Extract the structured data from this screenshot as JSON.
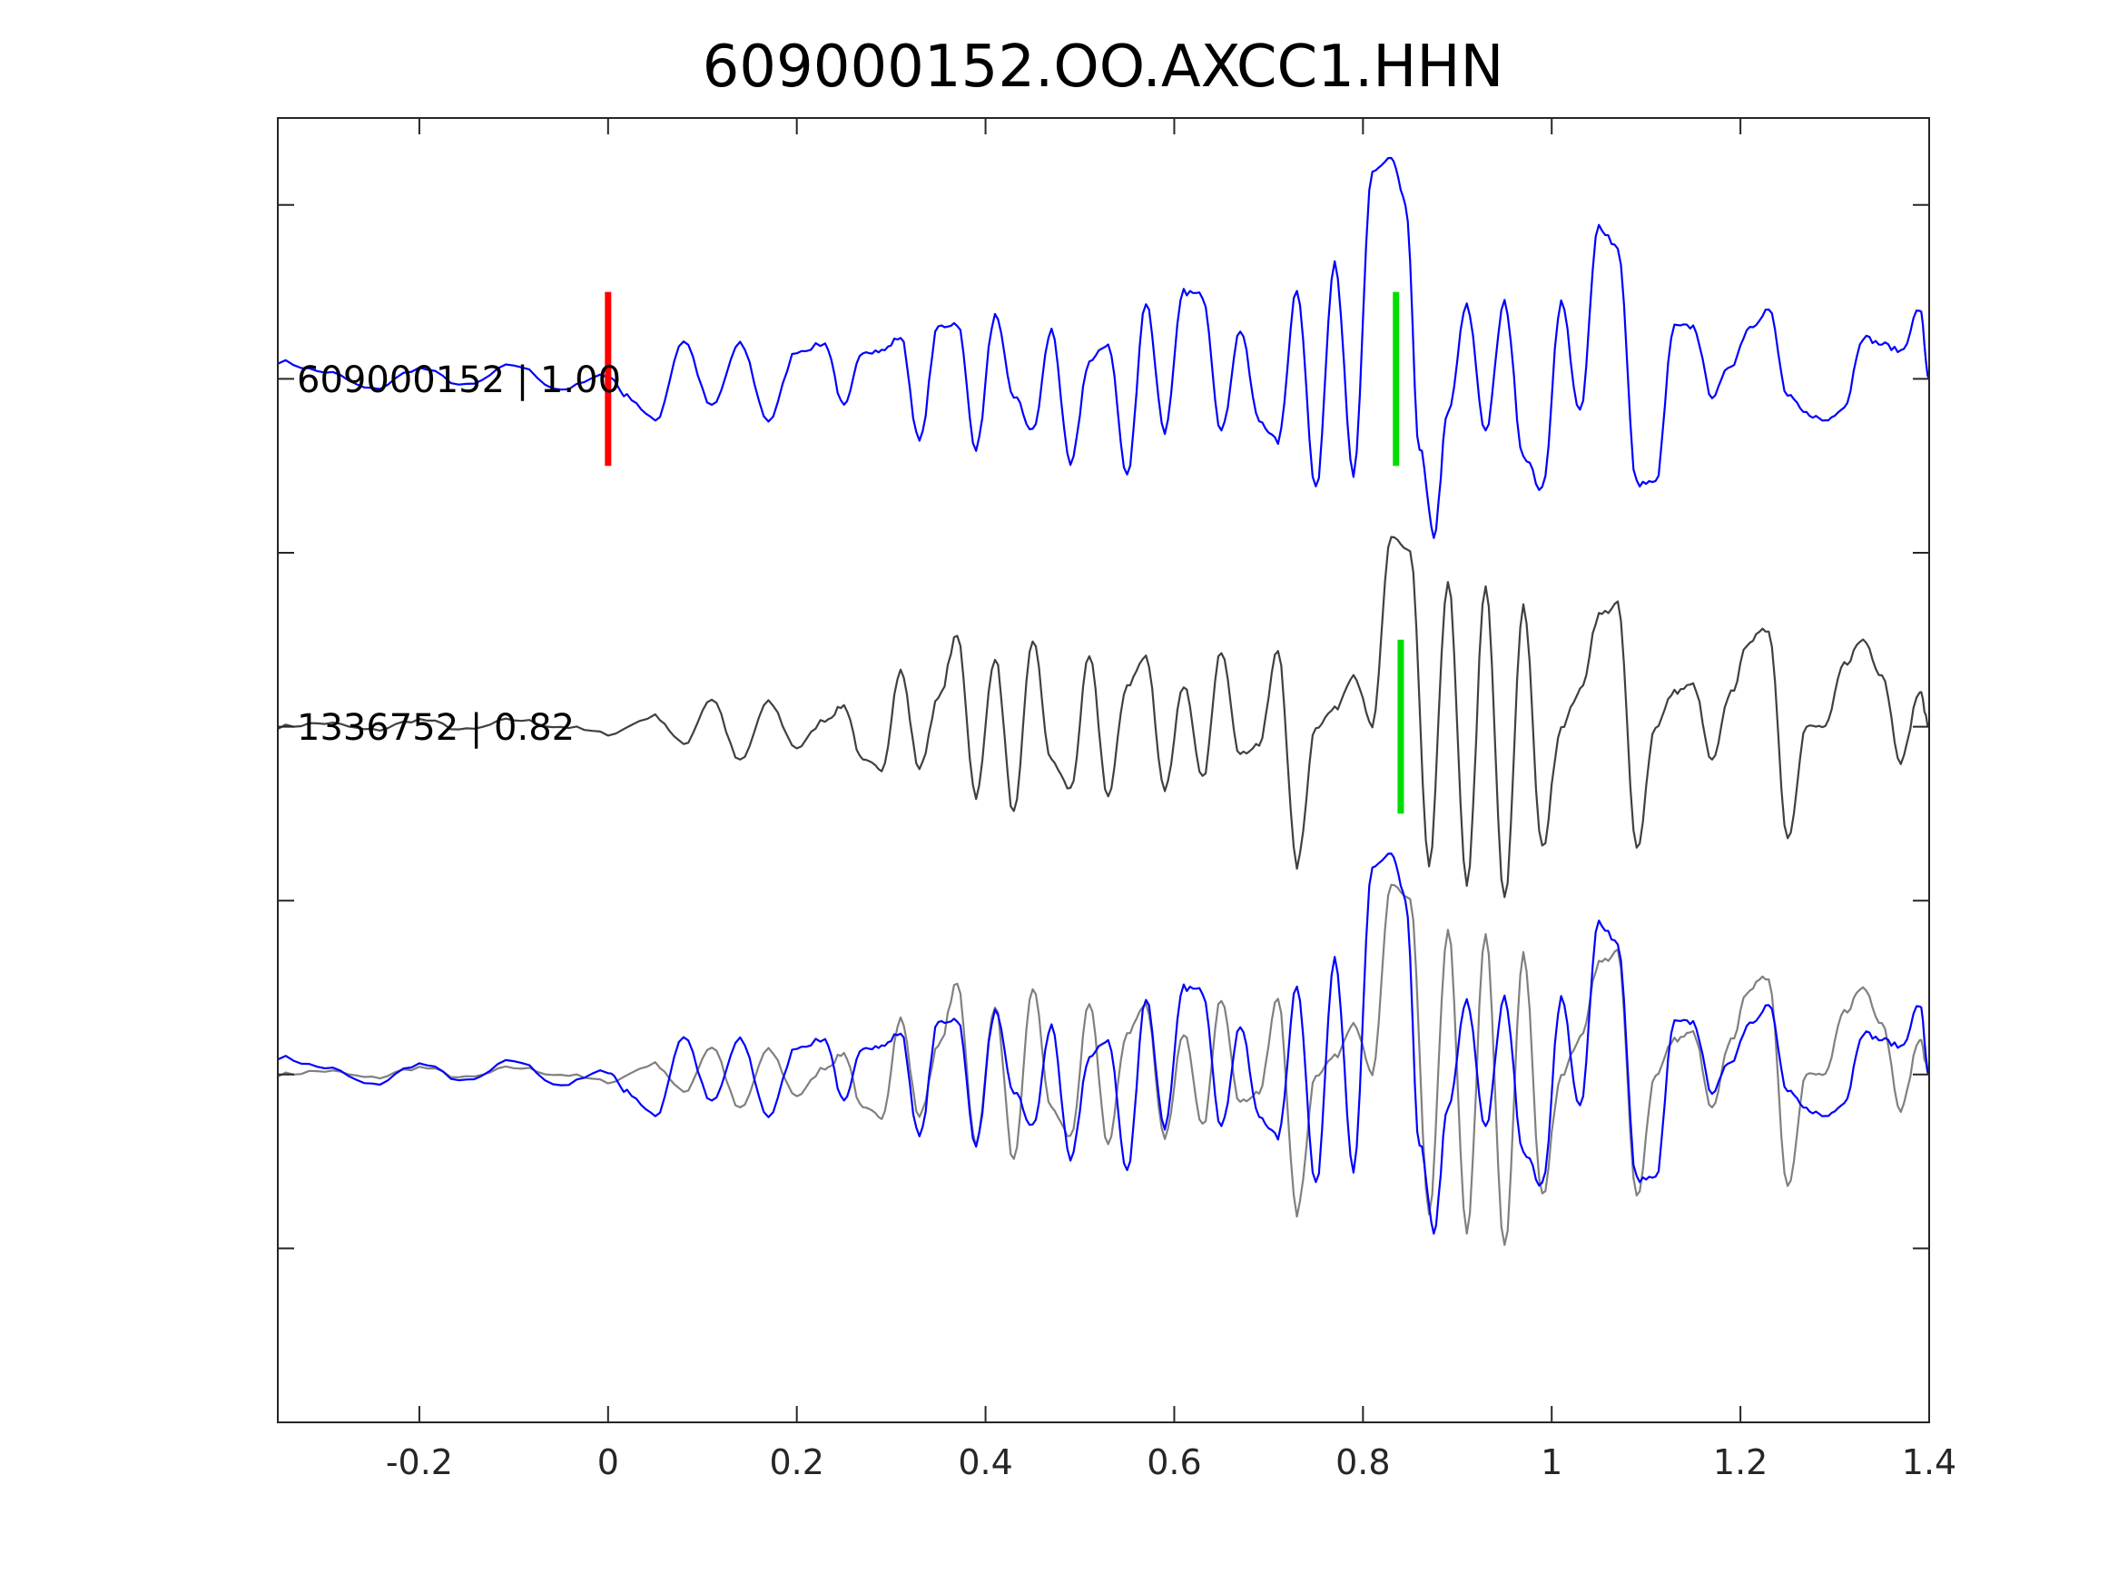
{
  "chart_data": {
    "type": "line",
    "title": "609000152.OO.AXCC1.HHN",
    "xlabel": "",
    "ylabel": "",
    "xlim": [
      -0.35,
      1.4
    ],
    "ylim": [
      -0.25,
      3.5
    ],
    "x_ticks": [
      {
        "value": -0.2,
        "label": "-0.2"
      },
      {
        "value": 0,
        "label": "0"
      },
      {
        "value": 0.2,
        "label": "0.2"
      },
      {
        "value": 0.4,
        "label": "0.4"
      },
      {
        "value": 0.6,
        "label": "0.6"
      },
      {
        "value": 0.8,
        "label": "0.8"
      },
      {
        "value": 1,
        "label": "1"
      },
      {
        "value": 1.2,
        "label": "1.2"
      },
      {
        "value": 1.4,
        "label": "1.4"
      }
    ],
    "y_ticks": [
      0.25,
      0.75,
      1.25,
      1.75,
      2.25,
      2.75,
      3.25
    ],
    "grid": false,
    "colors": {
      "trace1": "#0000ff",
      "trace2": "#404040",
      "overlay_trace2": "#808080",
      "p_pick": "#ff0000",
      "s_pick": "#00dd00",
      "axes": "#262626"
    },
    "traces": [
      {
        "label": "609000152 | 1.00",
        "baseline": 2.75,
        "color": "#0000ff",
        "x": [
          -0.35,
          -0.3,
          -0.25,
          -0.2,
          -0.15,
          -0.1,
          -0.05,
          0,
          0.02,
          0.05,
          0.08,
          0.11,
          0.14,
          0.17,
          0.2,
          0.23,
          0.25,
          0.27,
          0.29,
          0.31,
          0.33,
          0.35,
          0.37,
          0.39,
          0.41,
          0.43,
          0.45,
          0.47,
          0.49,
          0.51,
          0.53,
          0.55,
          0.57,
          0.59,
          0.61,
          0.63,
          0.65,
          0.67,
          0.69,
          0.71,
          0.73,
          0.75,
          0.77,
          0.79,
          0.81,
          0.83,
          0.845,
          0.86,
          0.875,
          0.89,
          0.91,
          0.93,
          0.95,
          0.97,
          0.99,
          1.01,
          1.03,
          1.05,
          1.07,
          1.09,
          1.11,
          1.13,
          1.15,
          1.17,
          1.19,
          1.21,
          1.23,
          1.25,
          1.27,
          1.29,
          1.31,
          1.33,
          1.35,
          1.37,
          1.39,
          1.4
        ],
        "y": [
          0.05,
          0.02,
          -0.03,
          0.03,
          -0.02,
          0.04,
          -0.03,
          0.01,
          -0.05,
          -0.12,
          0.11,
          -0.08,
          0.1,
          -0.12,
          0.08,
          0.1,
          -0.08,
          0.08,
          0.08,
          0.12,
          -0.18,
          0.15,
          0.16,
          -0.2,
          0.18,
          -0.05,
          -0.15,
          0.14,
          -0.25,
          0.05,
          0.1,
          -0.28,
          0.22,
          -0.15,
          0.25,
          0.24,
          -0.15,
          0.14,
          -0.12,
          -0.18,
          0.26,
          -0.32,
          0.34,
          -0.28,
          0.6,
          0.63,
          0.5,
          -0.2,
          -0.45,
          -0.1,
          0.21,
          -0.15,
          0.22,
          -0.22,
          -0.32,
          0.22,
          -0.1,
          0.44,
          0.38,
          -0.3,
          -0.3,
          0.15,
          0.15,
          -0.05,
          0.04,
          0.15,
          0.2,
          -0.05,
          -0.1,
          -0.12,
          -0.08,
          0.12,
          0.1,
          0.08,
          0.2,
          0.0
        ]
      },
      {
        "label": "1336752 | 0.82",
        "baseline": 1.75,
        "color": "#404040",
        "x": [
          -0.35,
          -0.3,
          -0.25,
          -0.2,
          -0.15,
          -0.1,
          -0.05,
          0,
          0.05,
          0.08,
          0.11,
          0.14,
          0.17,
          0.2,
          0.23,
          0.25,
          0.27,
          0.29,
          0.31,
          0.33,
          0.35,
          0.37,
          0.39,
          0.41,
          0.43,
          0.45,
          0.47,
          0.49,
          0.51,
          0.53,
          0.55,
          0.57,
          0.59,
          0.61,
          0.63,
          0.65,
          0.67,
          0.69,
          0.71,
          0.73,
          0.75,
          0.77,
          0.79,
          0.81,
          0.83,
          0.85,
          0.87,
          0.89,
          0.91,
          0.93,
          0.95,
          0.97,
          0.99,
          1.01,
          1.03,
          1.05,
          1.07,
          1.09,
          1.11,
          1.13,
          1.15,
          1.17,
          1.19,
          1.21,
          1.23,
          1.25,
          1.27,
          1.29,
          1.31,
          1.33,
          1.35,
          1.37,
          1.39,
          1.4
        ],
        "y": [
          0.0,
          0.01,
          -0.01,
          0.02,
          -0.01,
          0.02,
          0.0,
          -0.02,
          0.03,
          -0.05,
          0.08,
          -0.1,
          0.07,
          -0.06,
          0.02,
          0.06,
          -0.1,
          -0.12,
          0.16,
          -0.12,
          0.08,
          0.26,
          -0.2,
          0.2,
          -0.25,
          0.25,
          -0.1,
          -0.18,
          0.2,
          -0.2,
          0.12,
          0.2,
          -0.18,
          0.12,
          -0.15,
          0.22,
          -0.08,
          -0.05,
          0.22,
          -0.4,
          0.0,
          0.05,
          0.15,
          0.0,
          0.55,
          0.5,
          -0.4,
          0.42,
          -0.45,
          0.4,
          -0.5,
          0.35,
          -0.35,
          0.0,
          0.1,
          0.32,
          0.35,
          -0.35,
          0.0,
          0.1,
          0.12,
          -0.1,
          0.1,
          0.25,
          0.28,
          -0.32,
          0.0,
          0.0,
          0.18,
          0.25,
          0.15,
          -0.1,
          0.1,
          0.0
        ]
      }
    ],
    "picks": [
      {
        "kind": "P",
        "x": 0.0,
        "trace": 0,
        "color": "#ff0000"
      },
      {
        "kind": "S",
        "x": 0.835,
        "trace": 0,
        "color": "#00dd00"
      },
      {
        "kind": "S",
        "x": 0.84,
        "trace": 1,
        "color": "#00dd00"
      }
    ],
    "overlay_baseline": 0.75
  }
}
